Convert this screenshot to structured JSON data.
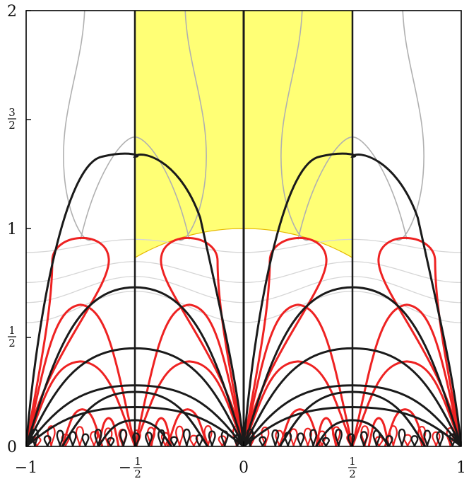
{
  "chart_data": {
    "type": "line",
    "xlim": [
      -1,
      1
    ],
    "ylim": [
      0,
      2
    ],
    "x_ticks": [
      {
        "value": -1,
        "label": "−1"
      },
      {
        "value": -0.5,
        "label": "−",
        "frac": [
          "1",
          "2"
        ]
      },
      {
        "value": 0,
        "label": "0"
      },
      {
        "value": 0.5,
        "label": "",
        "frac": [
          "1",
          "2"
        ]
      },
      {
        "value": 1,
        "label": "1"
      }
    ],
    "y_ticks": [
      {
        "value": 0,
        "label": "0"
      },
      {
        "value": 0.5,
        "label": "",
        "frac": [
          "1",
          "2"
        ]
      },
      {
        "value": 1,
        "label": "1"
      },
      {
        "value": 1.5,
        "label": "",
        "frac": [
          "3",
          "2"
        ]
      },
      {
        "value": 2,
        "label": "2"
      }
    ],
    "fundamental_domain": {
      "x_range": [
        -0.5,
        0.5
      ],
      "lower_boundary": "unit circle |z| = 1",
      "fill": "#ffff66",
      "edge": "#e6b800"
    },
    "colors": {
      "black_curves": "#1a1a1a",
      "red_curves": "#ee2222",
      "gray_curves": "#b0b0b0",
      "frame": "#000000"
    },
    "grid": false,
    "legend": "none"
  }
}
